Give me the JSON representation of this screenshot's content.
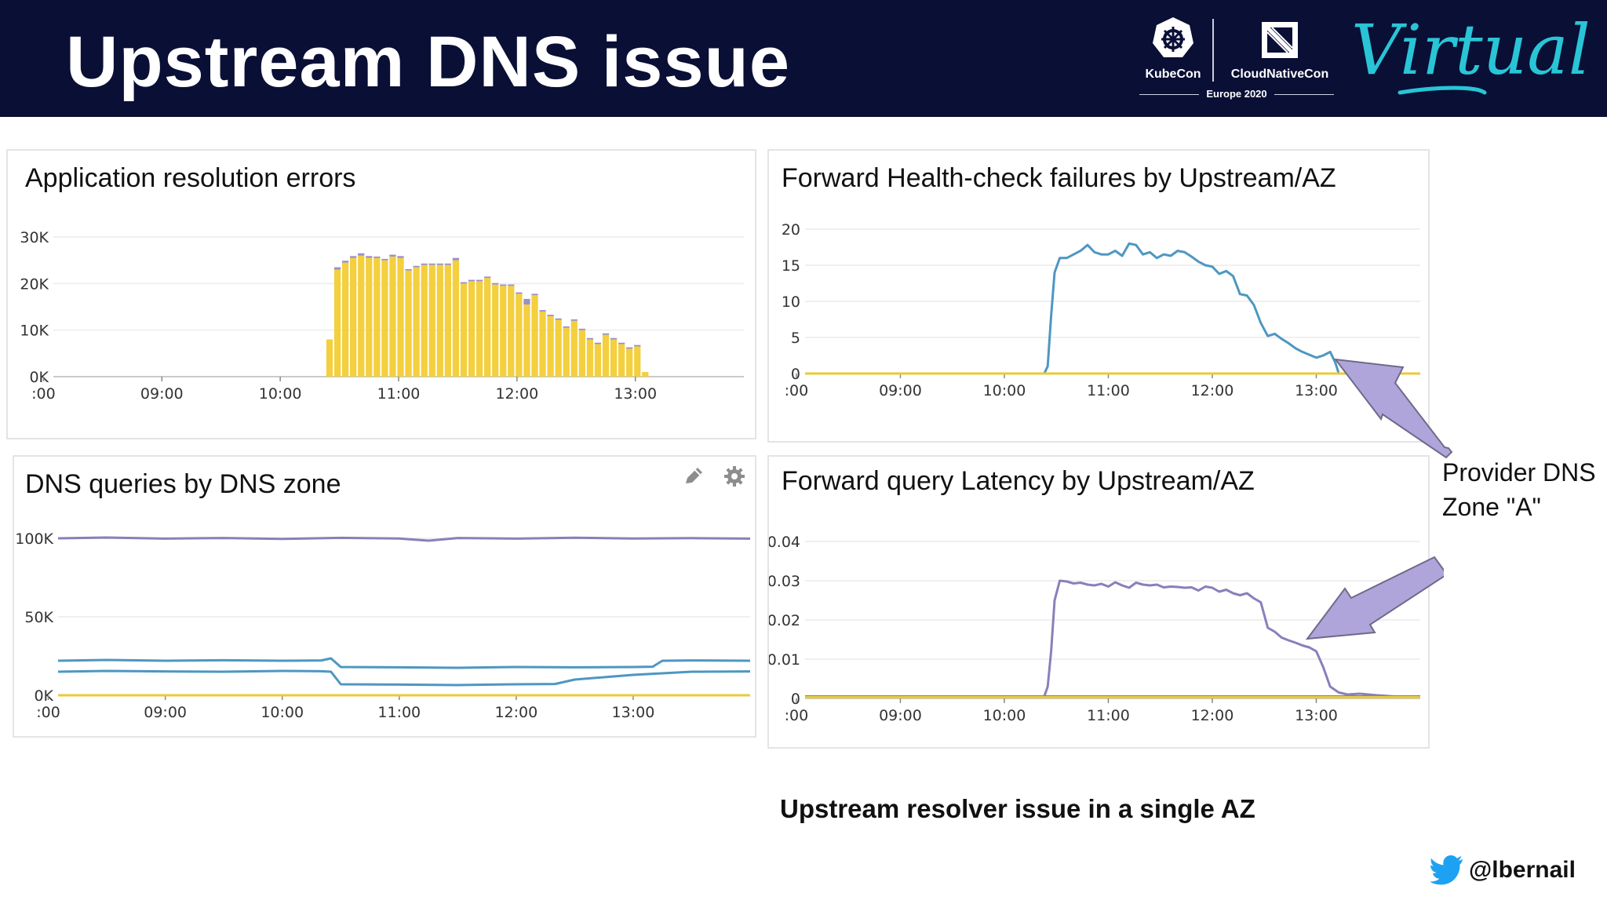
{
  "slide": {
    "title": "Upstream DNS issue",
    "caption": "Upstream resolver issue in a single AZ",
    "handle": "@lbernail",
    "annotation_line1": "Provider DNS",
    "annotation_line2": "Zone \"A\""
  },
  "header": {
    "kubecon_label": "KubeCon",
    "cnc_label": "CloudNativeCon",
    "event_label": "Europe 2020",
    "virtual_label": "Virtual",
    "icons": [
      "kubernetes-helm-icon",
      "cncf-logo-icon",
      "twitter-bird-icon"
    ]
  },
  "colors": {
    "header_bg": "#090f35",
    "bar_yellow": "#f4cf3e",
    "bar_purple_cap": "#9a8fc7",
    "line_blue": "#4d97c2",
    "line_purple": "#8a7fba",
    "line_yellow": "#ebc93a",
    "arrow_fill": "#b0a5da",
    "arrow_stroke": "#6e6a8a"
  },
  "chart_data": [
    {
      "id": "application-resolution-errors",
      "type": "bar",
      "title": "Application resolution errors",
      "x_ticks": [
        ":00",
        "09:00",
        "10:00",
        "11:00",
        "12:00",
        "13:00"
      ],
      "y_ticks": [
        "0K",
        "10K",
        "20K",
        "30K"
      ],
      "ylim": [
        0,
        30000
      ],
      "xlim": [
        "08:05",
        "13:55"
      ],
      "grid": true,
      "series": [
        {
          "x": [
            "10:25",
            "10:29",
            "10:33",
            "10:37",
            "10:41",
            "10:45",
            "10:49",
            "10:53",
            "10:57",
            "11:01",
            "11:05",
            "11:09",
            "11:13",
            "11:17",
            "11:21",
            "11:25",
            "11:29",
            "11:33",
            "11:37",
            "11:41",
            "11:45",
            "11:49",
            "11:53",
            "11:57",
            "12:01",
            "12:05",
            "12:09",
            "12:13",
            "12:17",
            "12:21",
            "12:25",
            "12:29",
            "12:33",
            "12:37",
            "12:41",
            "12:45",
            "12:49",
            "12:53",
            "12:57",
            "13:01",
            "13:05",
            "13:09",
            "13:13",
            "13:17"
          ],
          "values": [
            8000,
            23000,
            24500,
            25500,
            26000,
            25500,
            25500,
            25000,
            25800,
            25500,
            22800,
            23500,
            24000,
            24000,
            24000,
            24000,
            25000,
            20000,
            20500,
            20500,
            21200,
            19800,
            19500,
            19500,
            17800,
            15500,
            17500,
            14000,
            13000,
            12200,
            10500,
            12000,
            10000,
            8000,
            7000,
            9000,
            8000,
            7000,
            6000,
            6500,
            1000,
            0,
            0,
            0
          ],
          "caps": [
            0,
            500,
            400,
            400,
            500,
            400,
            300,
            300,
            400,
            400,
            300,
            300,
            300,
            300,
            300,
            300,
            500,
            300,
            300,
            300,
            300,
            300,
            300,
            300,
            300,
            1200,
            300,
            300,
            300,
            300,
            300,
            300,
            300,
            300,
            300,
            300,
            300,
            300,
            300,
            300,
            0,
            0,
            0,
            0
          ]
        }
      ]
    },
    {
      "id": "forward-health-check-failures",
      "type": "line",
      "title": "Forward Health-check failures by Upstream/AZ",
      "x_ticks": [
        ":00",
        "09:00",
        "10:00",
        "11:00",
        "12:00",
        "13:00"
      ],
      "y_ticks": [
        "0",
        "5",
        "10",
        "15",
        "20"
      ],
      "ylim": [
        0,
        20
      ],
      "xlim": [
        "08:05",
        "14:00"
      ],
      "grid": true,
      "series": [
        {
          "color": "blue",
          "x": [
            "08:05",
            "10:23",
            "10:25",
            "10:27",
            "10:29",
            "10:32",
            "10:36",
            "10:40",
            "10:44",
            "10:48",
            "10:52",
            "10:56",
            "11:00",
            "11:04",
            "11:08",
            "11:12",
            "11:16",
            "11:20",
            "11:24",
            "11:28",
            "11:32",
            "11:36",
            "11:40",
            "11:44",
            "11:48",
            "11:52",
            "11:56",
            "12:00",
            "12:04",
            "12:08",
            "12:12",
            "12:16",
            "12:20",
            "12:24",
            "12:28",
            "12:32",
            "12:36",
            "12:40",
            "12:44",
            "12:48",
            "12:52",
            "12:56",
            "13:00",
            "13:04",
            "13:08",
            "13:11",
            "13:13"
          ],
          "values": [
            0,
            0,
            1,
            8,
            14,
            16,
            16,
            16.5,
            17,
            17.8,
            16.8,
            16.5,
            16.5,
            17,
            16.3,
            18,
            17.8,
            16.5,
            16.8,
            16,
            16.5,
            16.3,
            17,
            16.8,
            16.2,
            15.5,
            15,
            14.8,
            13.8,
            14.2,
            13.5,
            11,
            10.8,
            9.5,
            7,
            5.2,
            5.5,
            4.8,
            4.2,
            3.5,
            3,
            2.6,
            2.2,
            2.5,
            3,
            1.5,
            0
          ]
        },
        {
          "color": "yellow",
          "x": [
            "08:05",
            "14:00"
          ],
          "values": [
            0,
            0
          ]
        }
      ]
    },
    {
      "id": "dns-queries-by-dns-zone",
      "type": "line",
      "title": "DNS queries by DNS zone",
      "x_ticks": [
        ":00",
        "09:00",
        "10:00",
        "11:00",
        "12:00",
        "13:00"
      ],
      "y_ticks": [
        "0K",
        "50K",
        "100K"
      ],
      "ylim": [
        0,
        100000
      ],
      "xlim": [
        "08:05",
        "14:00"
      ],
      "grid": true,
      "series": [
        {
          "color": "purple",
          "x": [
            "08:05",
            "08:30",
            "09:00",
            "09:30",
            "10:00",
            "10:30",
            "11:00",
            "11:15",
            "11:30",
            "12:00",
            "12:30",
            "13:00",
            "13:30",
            "14:00"
          ],
          "values": [
            100000,
            100500,
            99800,
            100200,
            99600,
            100300,
            99900,
            98500,
            100200,
            99800,
            100400,
            99900,
            100100,
            99800
          ]
        },
        {
          "color": "blue",
          "x": [
            "08:05",
            "08:30",
            "09:00",
            "09:30",
            "10:00",
            "10:20",
            "10:25",
            "10:30",
            "11:00",
            "11:30",
            "12:00",
            "12:30",
            "13:00",
            "13:10",
            "13:15",
            "13:30",
            "14:00"
          ],
          "values": [
            22000,
            22500,
            22000,
            22300,
            22000,
            22200,
            23500,
            18000,
            17800,
            17500,
            18000,
            17800,
            18000,
            18200,
            22000,
            22200,
            22000
          ]
        },
        {
          "color": "blue",
          "x": [
            "08:05",
            "08:30",
            "09:00",
            "09:30",
            "10:00",
            "10:20",
            "10:25",
            "10:30",
            "11:00",
            "11:30",
            "12:00",
            "12:20",
            "12:30",
            "13:00",
            "13:30",
            "14:00"
          ],
          "values": [
            15000,
            15500,
            15200,
            15000,
            15500,
            15300,
            15000,
            7000,
            6800,
            6500,
            7000,
            7200,
            10000,
            13000,
            15000,
            15200
          ]
        },
        {
          "color": "yellow",
          "x": [
            "08:05",
            "14:00"
          ],
          "values": [
            0,
            0
          ]
        }
      ]
    },
    {
      "id": "forward-query-latency",
      "type": "line",
      "title": "Forward query Latency by Upstream/AZ",
      "x_ticks": [
        ":00",
        "09:00",
        "10:00",
        "11:00",
        "12:00",
        "13:00"
      ],
      "y_ticks": [
        "0",
        "0.01",
        "0.02",
        "0.03",
        "0.04"
      ],
      "ylim": [
        0,
        0.04
      ],
      "xlim": [
        "08:05",
        "14:00"
      ],
      "grid": true,
      "series": [
        {
          "color": "purple",
          "x": [
            "08:05",
            "10:23",
            "10:25",
            "10:27",
            "10:29",
            "10:32",
            "10:36",
            "10:40",
            "10:44",
            "10:48",
            "10:52",
            "10:56",
            "11:00",
            "11:04",
            "11:08",
            "11:12",
            "11:16",
            "11:20",
            "11:24",
            "11:28",
            "11:32",
            "11:36",
            "11:40",
            "11:44",
            "11:48",
            "11:52",
            "11:56",
            "12:00",
            "12:04",
            "12:08",
            "12:12",
            "12:16",
            "12:20",
            "12:24",
            "12:28",
            "12:32",
            "12:36",
            "12:40",
            "12:44",
            "12:48",
            "12:52",
            "12:56",
            "13:00",
            "13:04",
            "13:08",
            "13:13",
            "13:18",
            "13:25",
            "13:35",
            "13:45",
            "13:55"
          ],
          "values": [
            0.0005,
            0.0005,
            0.003,
            0.012,
            0.025,
            0.03,
            0.0298,
            0.0293,
            0.0295,
            0.029,
            0.0288,
            0.0292,
            0.0285,
            0.0296,
            0.0288,
            0.0282,
            0.0295,
            0.029,
            0.0288,
            0.029,
            0.0283,
            0.0285,
            0.0284,
            0.0282,
            0.0283,
            0.0275,
            0.0285,
            0.0282,
            0.0272,
            0.0277,
            0.0268,
            0.0263,
            0.0268,
            0.0255,
            0.0245,
            0.018,
            0.017,
            0.0155,
            0.0148,
            0.0142,
            0.0135,
            0.013,
            0.012,
            0.008,
            0.003,
            0.0015,
            0.001,
            0.0012,
            0.0008,
            0.0005,
            0.0005
          ]
        },
        {
          "color": "blue",
          "x": [
            "08:05",
            "14:00"
          ],
          "values": [
            0.0005,
            0.0005
          ]
        },
        {
          "color": "yellow",
          "x": [
            "08:05",
            "14:00"
          ],
          "values": [
            0.0003,
            0.0003
          ]
        }
      ]
    }
  ]
}
